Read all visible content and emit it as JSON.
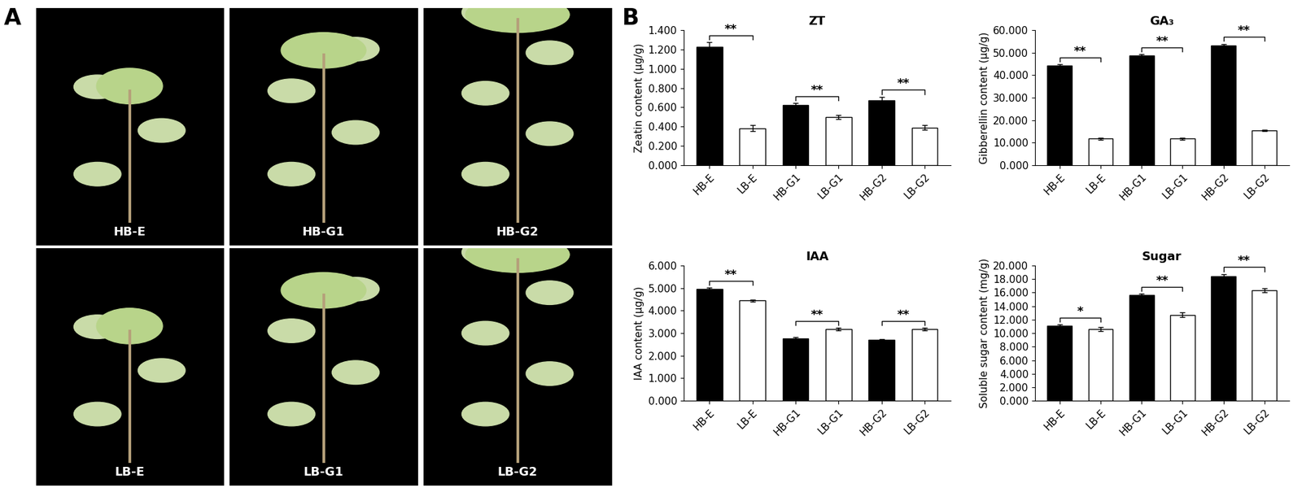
{
  "panel_labels": [
    "A",
    "B"
  ],
  "photos": [
    "HB-E",
    "HB-G1",
    "HB-G2",
    "LB-E",
    "LB-G1",
    "LB-G2"
  ],
  "chart_data": [
    {
      "type": "bar",
      "title": "ZT",
      "y_label": "Zeatin content (μg/g)",
      "categories": [
        "HB-E",
        "LB-E",
        "HB-G1",
        "LB-G1",
        "HB-G2",
        "LB-G2"
      ],
      "values": [
        1.225,
        0.385,
        0.625,
        0.5,
        0.67,
        0.39
      ],
      "errors": [
        0.05,
        0.03,
        0.02,
        0.02,
        0.04,
        0.025
      ],
      "colors": [
        "#000000",
        "#ffffff",
        "#000000",
        "#ffffff",
        "#000000",
        "#ffffff"
      ],
      "ylim": [
        0,
        1.4
      ],
      "yticks": [
        {
          "value": 0,
          "label": "0.000"
        },
        {
          "value": 0.2,
          "label": "0.200"
        },
        {
          "value": 0.4,
          "label": "0.400"
        },
        {
          "value": 0.6,
          "label": "0.600"
        },
        {
          "value": 0.8,
          "label": "0.800"
        },
        {
          "value": 1.0,
          "label": "1.000"
        },
        {
          "value": 1.2,
          "label": "1.200"
        },
        {
          "value": 1.4,
          "label": "1.400"
        }
      ],
      "significance": [
        {
          "pair": [
            0,
            1
          ],
          "label": "**"
        },
        {
          "pair": [
            2,
            3
          ],
          "label": "**"
        },
        {
          "pair": [
            4,
            5
          ],
          "label": "**"
        }
      ]
    },
    {
      "type": "bar",
      "title": "GA₃",
      "y_label": "Gibberellin content (μg/g)",
      "categories": [
        "HB-E",
        "LB-E",
        "HB-G1",
        "LB-G1",
        "HB-G2",
        "LB-G2"
      ],
      "values": [
        44.3,
        11.8,
        48.6,
        11.8,
        53.2,
        15.5
      ],
      "errors": [
        0.6,
        0.4,
        0.6,
        0.5,
        0.7,
        0.4
      ],
      "colors": [
        "#000000",
        "#ffffff",
        "#000000",
        "#ffffff",
        "#000000",
        "#ffffff"
      ],
      "ylim": [
        0,
        60
      ],
      "yticks": [
        {
          "value": 0,
          "label": "0.000"
        },
        {
          "value": 10,
          "label": "10.000"
        },
        {
          "value": 20,
          "label": "20.000"
        },
        {
          "value": 30,
          "label": "30.000"
        },
        {
          "value": 40,
          "label": "40.000"
        },
        {
          "value": 50,
          "label": "50.000"
        },
        {
          "value": 60,
          "label": "60.000"
        }
      ],
      "significance": [
        {
          "pair": [
            0,
            1
          ],
          "label": "**"
        },
        {
          "pair": [
            2,
            3
          ],
          "label": "**"
        },
        {
          "pair": [
            4,
            5
          ],
          "label": "**"
        }
      ]
    },
    {
      "type": "bar",
      "title": "IAA",
      "y_label": "IAA content (μg/g)",
      "categories": [
        "HB-E",
        "LB-E",
        "HB-G1",
        "LB-G1",
        "HB-G2",
        "LB-G2"
      ],
      "values": [
        4.95,
        4.45,
        2.78,
        3.18,
        2.7,
        3.18
      ],
      "errors": [
        0.06,
        0.04,
        0.04,
        0.06,
        0.05,
        0.07
      ],
      "colors": [
        "#000000",
        "#ffffff",
        "#000000",
        "#ffffff",
        "#000000",
        "#ffffff"
      ],
      "ylim": [
        0,
        6
      ],
      "yticks": [
        {
          "value": 0,
          "label": "0.000"
        },
        {
          "value": 1,
          "label": "1.000"
        },
        {
          "value": 2,
          "label": "2.000"
        },
        {
          "value": 3,
          "label": "3.000"
        },
        {
          "value": 4,
          "label": "4.000"
        },
        {
          "value": 5,
          "label": "5.000"
        },
        {
          "value": 6,
          "label": "6.000"
        }
      ],
      "significance": [
        {
          "pair": [
            0,
            1
          ],
          "label": "**"
        },
        {
          "pair": [
            2,
            3
          ],
          "label": "**"
        },
        {
          "pair": [
            4,
            5
          ],
          "label": "**"
        }
      ]
    },
    {
      "type": "bar",
      "title": "Sugar",
      "y_label": "Soluble sugar content (mg/g)",
      "categories": [
        "HB-E",
        "LB-E",
        "HB-G1",
        "LB-G1",
        "HB-G2",
        "LB-G2"
      ],
      "values": [
        11.1,
        10.6,
        15.6,
        12.7,
        18.45,
        16.3
      ],
      "errors": [
        0.2,
        0.25,
        0.2,
        0.35,
        0.3,
        0.3
      ],
      "colors": [
        "#000000",
        "#ffffff",
        "#000000",
        "#ffffff",
        "#000000",
        "#ffffff"
      ],
      "ylim": [
        0,
        20
      ],
      "yticks": [
        {
          "value": 0,
          "label": "0.000"
        },
        {
          "value": 2,
          "label": "2.000"
        },
        {
          "value": 4,
          "label": "4.000"
        },
        {
          "value": 6,
          "label": "6.000"
        },
        {
          "value": 8,
          "label": "8.000"
        },
        {
          "value": 10,
          "label": "10.000"
        },
        {
          "value": 12,
          "label": "12.000"
        },
        {
          "value": 14,
          "label": "14.000"
        },
        {
          "value": 16,
          "label": "16.000"
        },
        {
          "value": 18,
          "label": "18.000"
        },
        {
          "value": 20,
          "label": "20.000"
        }
      ],
      "significance": [
        {
          "pair": [
            0,
            1
          ],
          "label": "*"
        },
        {
          "pair": [
            2,
            3
          ],
          "label": "**"
        },
        {
          "pair": [
            4,
            5
          ],
          "label": "**"
        }
      ]
    }
  ]
}
